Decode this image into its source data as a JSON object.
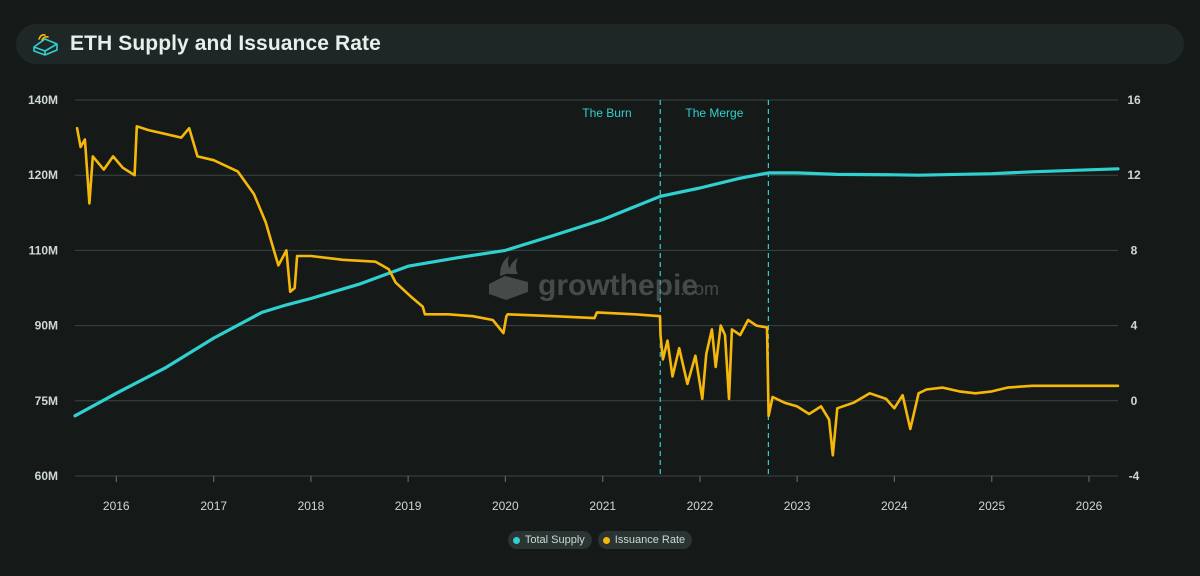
{
  "header": {
    "title": "ETH Supply and Issuance Rate"
  },
  "watermark": {
    "brand": "growthepie",
    "suffix": ".com"
  },
  "colors": {
    "supply": "#2fd0cf",
    "issuance": "#f5b80a",
    "grid": "#3a4443",
    "event": "#2fd0cf"
  },
  "chart_data": {
    "type": "line",
    "title": "ETH Supply and Issuance Rate",
    "x_range": [
      "2015-07-30",
      "2026-04-20"
    ],
    "x_ticks": [
      "2016",
      "2017",
      "2018",
      "2019",
      "2020",
      "2021",
      "2022",
      "2023",
      "2024",
      "2025",
      "2026"
    ],
    "y_left_ticks": [
      "140M",
      "120M",
      "110M",
      "90M",
      "75M",
      "60M"
    ],
    "y_right_ticks": [
      "16",
      "12",
      "8",
      "4",
      "0",
      "-4"
    ],
    "y_right_range": [
      -4,
      16
    ],
    "grid": true,
    "legend": "bottom-center",
    "events": [
      {
        "label": "The Burn",
        "date": "2021-08-05"
      },
      {
        "label": "The Merge",
        "date": "2022-09-15"
      }
    ],
    "series": [
      {
        "name": "Total Supply",
        "axis": "left",
        "points": [
          [
            "2015-07-30",
            72.0
          ],
          [
            "2016-01-01",
            76.5
          ],
          [
            "2016-07-01",
            81.5
          ],
          [
            "2017-01-01",
            87.5
          ],
          [
            "2017-07-01",
            93.5
          ],
          [
            "2017-10-01",
            95.5
          ],
          [
            "2018-01-01",
            97.2
          ],
          [
            "2018-07-01",
            101.0
          ],
          [
            "2019-01-01",
            105.8
          ],
          [
            "2019-07-01",
            108.0
          ],
          [
            "2020-01-01",
            110.0
          ],
          [
            "2020-07-01",
            112.0
          ],
          [
            "2021-01-01",
            114.1
          ],
          [
            "2021-08-05",
            117.2
          ],
          [
            "2022-01-01",
            118.3
          ],
          [
            "2022-06-01",
            119.6
          ],
          [
            "2022-09-15",
            120.6
          ],
          [
            "2023-01-01",
            120.6
          ],
          [
            "2023-06-01",
            120.2
          ],
          [
            "2024-01-01",
            120.1
          ],
          [
            "2024-04-01",
            120.0
          ],
          [
            "2025-01-01",
            120.4
          ],
          [
            "2025-06-01",
            120.9
          ],
          [
            "2026-04-20",
            121.7
          ]
        ]
      },
      {
        "name": "Issuance Rate",
        "axis": "right",
        "points": [
          [
            "2015-08-07",
            14.5
          ],
          [
            "2015-08-20",
            13.5
          ],
          [
            "2015-09-05",
            13.9
          ],
          [
            "2015-09-22",
            10.5
          ],
          [
            "2015-10-05",
            13.0
          ],
          [
            "2015-11-15",
            12.3
          ],
          [
            "2015-12-20",
            13.0
          ],
          [
            "2016-01-25",
            12.4
          ],
          [
            "2016-03-10",
            12.0
          ],
          [
            "2016-03-18",
            14.6
          ],
          [
            "2016-05-01",
            14.4
          ],
          [
            "2016-07-01",
            14.2
          ],
          [
            "2016-09-01",
            14.0
          ],
          [
            "2016-10-01",
            14.5
          ],
          [
            "2016-11-01",
            13.0
          ],
          [
            "2017-01-01",
            12.8
          ],
          [
            "2017-04-01",
            12.2
          ],
          [
            "2017-06-01",
            11.0
          ],
          [
            "2017-07-15",
            9.5
          ],
          [
            "2017-08-15",
            8.0
          ],
          [
            "2017-09-01",
            7.2
          ],
          [
            "2017-10-01",
            8.0
          ],
          [
            "2017-10-15",
            5.8
          ],
          [
            "2017-11-01",
            6.0
          ],
          [
            "2017-11-10",
            7.7
          ],
          [
            "2018-01-01",
            7.7
          ],
          [
            "2018-05-01",
            7.5
          ],
          [
            "2018-09-01",
            7.4
          ],
          [
            "2018-10-20",
            7.0
          ],
          [
            "2018-11-15",
            6.3
          ],
          [
            "2019-01-15",
            5.5
          ],
          [
            "2019-02-25",
            5.0
          ],
          [
            "2019-03-05",
            4.6
          ],
          [
            "2019-06-01",
            4.6
          ],
          [
            "2019-09-01",
            4.5
          ],
          [
            "2019-11-15",
            4.3
          ],
          [
            "2019-12-25",
            3.6
          ],
          [
            "2020-01-05",
            4.5
          ],
          [
            "2020-01-10",
            4.6
          ],
          [
            "2020-07-01",
            4.5
          ],
          [
            "2020-12-01",
            4.4
          ],
          [
            "2020-12-10",
            4.7
          ],
          [
            "2021-05-01",
            4.6
          ],
          [
            "2021-08-04",
            4.5
          ],
          [
            "2021-08-06",
            3.5
          ],
          [
            "2021-08-15",
            2.2
          ],
          [
            "2021-09-01",
            3.2
          ],
          [
            "2021-09-20",
            1.3
          ],
          [
            "2021-10-15",
            2.8
          ],
          [
            "2021-11-15",
            0.9
          ],
          [
            "2021-12-15",
            2.4
          ],
          [
            "2022-01-10",
            0.1
          ],
          [
            "2022-01-25",
            2.5
          ],
          [
            "2022-02-15",
            3.8
          ],
          [
            "2022-03-01",
            1.8
          ],
          [
            "2022-03-20",
            4.0
          ],
          [
            "2022-04-05",
            3.5
          ],
          [
            "2022-04-20",
            0.1
          ],
          [
            "2022-05-01",
            3.8
          ],
          [
            "2022-06-01",
            3.5
          ],
          [
            "2022-07-01",
            4.3
          ],
          [
            "2022-08-01",
            4.0
          ],
          [
            "2022-09-10",
            3.9
          ],
          [
            "2022-09-16",
            -0.8
          ],
          [
            "2022-10-01",
            0.2
          ],
          [
            "2022-11-15",
            -0.1
          ],
          [
            "2023-01-01",
            -0.3
          ],
          [
            "2023-02-15",
            -0.7
          ],
          [
            "2023-04-01",
            -0.3
          ],
          [
            "2023-05-01",
            -1.0
          ],
          [
            "2023-05-15",
            -2.9
          ],
          [
            "2023-06-01",
            -0.4
          ],
          [
            "2023-08-01",
            -0.1
          ],
          [
            "2023-10-01",
            0.4
          ],
          [
            "2023-12-01",
            0.1
          ],
          [
            "2024-01-01",
            -0.4
          ],
          [
            "2024-02-01",
            0.3
          ],
          [
            "2024-03-01",
            -1.5
          ],
          [
            "2024-04-01",
            0.4
          ],
          [
            "2024-05-01",
            0.6
          ],
          [
            "2024-07-01",
            0.7
          ],
          [
            "2024-09-01",
            0.5
          ],
          [
            "2024-11-01",
            0.4
          ],
          [
            "2025-01-01",
            0.5
          ],
          [
            "2025-03-01",
            0.7
          ],
          [
            "2025-06-01",
            0.8
          ],
          [
            "2025-09-01",
            0.8
          ],
          [
            "2026-01-01",
            0.8
          ],
          [
            "2026-04-20",
            0.8
          ]
        ]
      }
    ]
  }
}
